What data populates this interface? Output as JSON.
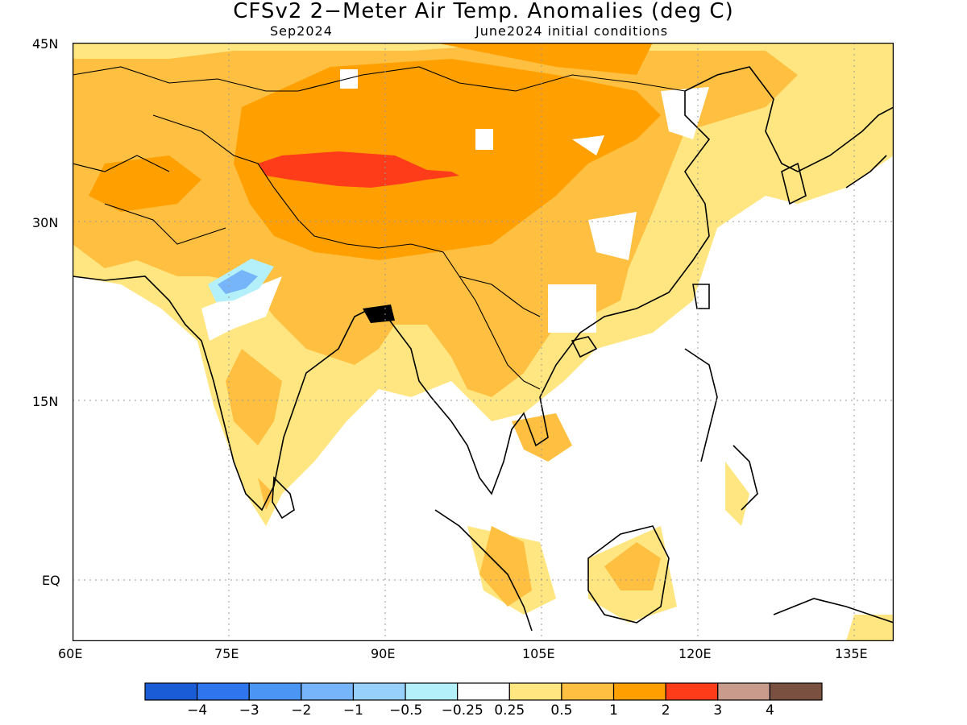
{
  "title": "CFSv2 2−Meter Air Temp. Anomalies (deg C)",
  "subtitle_left": "Sep2024",
  "subtitle_right": "June2024 initial conditions",
  "axes": {
    "y_labels": [
      "45N",
      "30N",
      "15N",
      "EQ"
    ],
    "x_labels": [
      "60E",
      "75E",
      "90E",
      "105E",
      "120E",
      "135E"
    ]
  },
  "colorbar": {
    "colors": [
      "#1a5bd6",
      "#2e75ee",
      "#4b96f5",
      "#77b5fa",
      "#97d1fb",
      "#b4f0fa",
      "#ffffff",
      "#ffe680",
      "#ffbf40",
      "#ffa000",
      "#ff3c1a",
      "#c89b8c",
      "#7a5040"
    ],
    "labels": [
      "−4",
      "−3",
      "−2",
      "−1",
      "−0.5",
      "−0.25",
      "0.25",
      "0.5",
      "1",
      "2",
      "3",
      "4"
    ]
  },
  "legend_colors": {
    "weak_warm": "#ffe680",
    "warm": "#ffbf40",
    "warmer": "#ffa000",
    "hot": "#ff3c1a",
    "cool": "#b4f0fa",
    "cooler": "#77b5fa"
  }
}
